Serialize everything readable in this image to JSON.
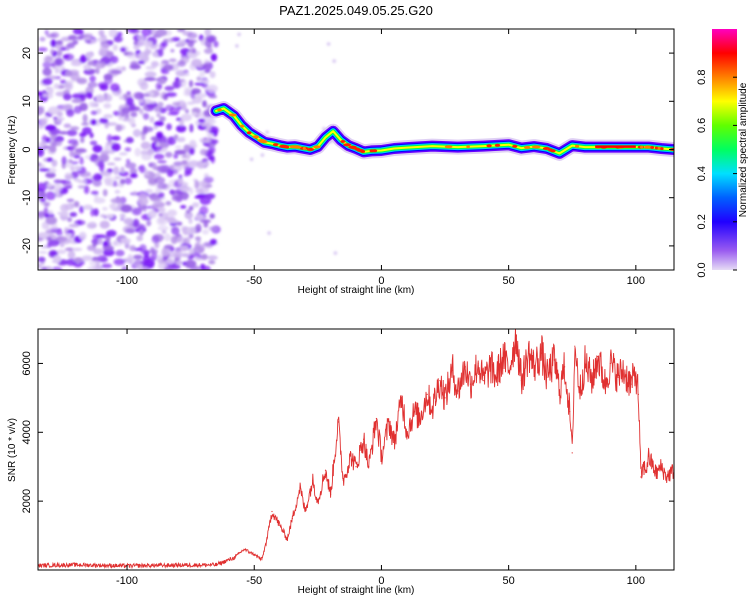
{
  "chart_data": [
    {
      "type": "heatmap",
      "title": "PAZ1.2025.049.05.25.G20",
      "xlabel": "Height of straight line (km)",
      "ylabel": "Frequency (Hz)",
      "xlim": [
        -135,
        115
      ],
      "ylim": [
        -25,
        25
      ],
      "xticks": [
        -100,
        -50,
        0,
        50,
        100
      ],
      "yticks": [
        20,
        10,
        0,
        -10,
        -20
      ],
      "colorbar": {
        "label": "Normalized spectral amplitude",
        "range": [
          0.0,
          1.0
        ],
        "ticks": [
          0.0,
          0.2,
          0.4,
          0.6,
          0.8
        ],
        "colors": [
          "#d9c8f2",
          "#6a00ff",
          "#0000ff",
          "#00c8ff",
          "#00ff40",
          "#ffff00",
          "#ff8000",
          "#ff0000",
          "#ff00c0"
        ]
      },
      "noise_region_x": [
        -135,
        -65
      ],
      "ridge": {
        "x": [
          -65,
          -62,
          -58,
          -55,
          -52,
          -49,
          -46,
          -43,
          -40,
          -37,
          -34,
          -31,
          -28,
          -25,
          -22,
          -19,
          -16,
          -13,
          -10,
          -7,
          -4,
          0,
          5,
          10,
          20,
          30,
          40,
          50,
          55,
          60,
          65,
          70,
          75,
          80,
          90,
          100,
          105,
          110,
          115
        ],
        "y": [
          8,
          8.5,
          7,
          5,
          3.5,
          2.5,
          1.5,
          1.2,
          0.8,
          0.5,
          0.6,
          0.3,
          0,
          0.6,
          2.5,
          3.8,
          2,
          0.8,
          0.2,
          -0.5,
          -0.3,
          -0.2,
          0.2,
          0.4,
          0.7,
          0.5,
          0.7,
          1,
          0.3,
          0.6,
          0.2,
          -0.8,
          0.8,
          0.5,
          0.5,
          0.5,
          0.5,
          0.2,
          0
        ]
      }
    },
    {
      "type": "line",
      "xlabel": "Height of straight line (km)",
      "ylabel": "SNR (10 * v/v)",
      "xlim": [
        -135,
        115
      ],
      "ylim": [
        0,
        7000
      ],
      "xticks": [
        -100,
        -50,
        0,
        50,
        100
      ],
      "yticks": [
        2000,
        4000,
        6000
      ],
      "color": "#e03030",
      "series": [
        {
          "x": [
            -135,
            -120,
            -100,
            -80,
            -65,
            -58,
            -54,
            -50,
            -47,
            -45,
            -43,
            -40,
            -37,
            -35,
            -32,
            -30,
            -27,
            -25,
            -22,
            -20,
            -17,
            -15,
            -12,
            -10,
            -7,
            -5,
            -2,
            0,
            3,
            5,
            8,
            10,
            13,
            15,
            18,
            20,
            23,
            25,
            28,
            30,
            33,
            35,
            38,
            40,
            43,
            45,
            48,
            50,
            53,
            55,
            58,
            60,
            63,
            65,
            68,
            70,
            72,
            74,
            75,
            76,
            78,
            80,
            83,
            85,
            88,
            90,
            93,
            95,
            98,
            100,
            101,
            102,
            103,
            104,
            105,
            108,
            110,
            112,
            115
          ],
          "y": [
            130,
            150,
            120,
            140,
            150,
            350,
            600,
            450,
            300,
            900,
            1700,
            1300,
            900,
            1500,
            2400,
            1700,
            2600,
            2000,
            2900,
            2200,
            4300,
            2600,
            3300,
            3000,
            3800,
            3000,
            4400,
            3300,
            4300,
            3700,
            5000,
            4000,
            4600,
            4400,
            5100,
            4700,
            5500,
            5000,
            5800,
            5200,
            5900,
            5400,
            6000,
            5500,
            5900,
            5600,
            6200,
            5800,
            6800,
            5500,
            6300,
            5900,
            6300,
            5600,
            6100,
            5200,
            5900,
            4600,
            3400,
            6500,
            5200,
            6000,
            5500,
            6200,
            5400,
            6000,
            5600,
            5800,
            5400,
            5700,
            5100,
            2700,
            3000,
            2900,
            3300,
            2800,
            3000,
            2700,
            2900
          ]
        }
      ]
    }
  ]
}
